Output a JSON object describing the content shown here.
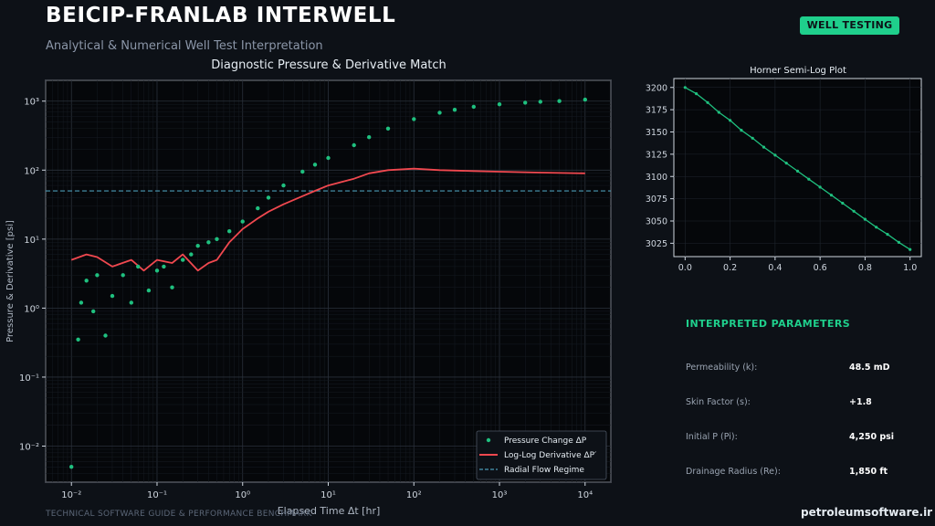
{
  "header": {
    "title": "BEICIP-FRANLAB INTERWELL",
    "subtitle": "Analytical & Numerical Well Test Interpretation",
    "badge": "WELL TESTING"
  },
  "chart_data": [
    {
      "type": "scatter",
      "title": "Diagnostic Pressure & Derivative Match",
      "xlabel": "Elapsed Time Δt [hr]",
      "ylabel": "Pressure & Derivative [psi]",
      "xscale": "log",
      "yscale": "log",
      "xlim": [
        0.005,
        20000
      ],
      "ylim": [
        0.003,
        2000
      ],
      "xticks": [
        "10⁻²",
        "10⁻¹",
        "10⁰",
        "10¹",
        "10²",
        "10³",
        "10⁴"
      ],
      "yticks": [
        "10⁻²",
        "10⁻¹",
        "10⁰",
        "10¹",
        "10²",
        "10³"
      ],
      "grid": true,
      "legend_position": "bottom-right",
      "series": [
        {
          "name": "Pressure Change ΔP",
          "type": "scatter",
          "color": "#1fc07f",
          "x": [
            0.01,
            0.012,
            0.013,
            0.015,
            0.018,
            0.02,
            0.025,
            0.03,
            0.04,
            0.05,
            0.06,
            0.08,
            0.1,
            0.12,
            0.15,
            0.2,
            0.25,
            0.3,
            0.4,
            0.5,
            0.7,
            1,
            1.5,
            2,
            3,
            5,
            7,
            10,
            20,
            30,
            50,
            100,
            200,
            300,
            500,
            1000,
            2000,
            3000,
            5000,
            10000
          ],
          "y": [
            0.005,
            0.35,
            1.2,
            2.5,
            0.9,
            3,
            0.4,
            1.5,
            3,
            1.2,
            4,
            1.8,
            3.5,
            4,
            2,
            5,
            6,
            8,
            9,
            10,
            13,
            18,
            28,
            40,
            60,
            95,
            120,
            150,
            230,
            300,
            400,
            550,
            680,
            750,
            830,
            900,
            950,
            980,
            1000,
            1050
          ]
        },
        {
          "name": "Log-Log Derivative ΔP′",
          "type": "line",
          "color": "#f0484f",
          "x": [
            0.01,
            0.015,
            0.02,
            0.03,
            0.05,
            0.07,
            0.1,
            0.15,
            0.2,
            0.3,
            0.4,
            0.5,
            0.7,
            1,
            1.5,
            2,
            3,
            5,
            7,
            10,
            20,
            30,
            50,
            100,
            200,
            500,
            1000,
            3000,
            10000
          ],
          "y": [
            5,
            6,
            5.5,
            4,
            5,
            3.5,
            5,
            4.5,
            6,
            3.5,
            4.5,
            5,
            9,
            14,
            20,
            25,
            32,
            42,
            50,
            60,
            75,
            90,
            100,
            105,
            100,
            97,
            95,
            92,
            90
          ]
        },
        {
          "name": "Radial Flow Regime",
          "type": "hline",
          "color": "#4a9ab5",
          "y": 50
        }
      ]
    },
    {
      "type": "line",
      "title": "Horner Semi-Log Plot",
      "xlim": [
        -0.05,
        1.05
      ],
      "ylim": [
        3010,
        3210
      ],
      "xticks": [
        "0.0",
        "0.2",
        "0.4",
        "0.6",
        "0.8",
        "1.0"
      ],
      "yticks": [
        "3200",
        "3175",
        "3150",
        "3125",
        "3100",
        "3075",
        "3050",
        "3025"
      ],
      "color": "#1fc07f",
      "x": [
        0,
        0.05,
        0.1,
        0.15,
        0.2,
        0.25,
        0.3,
        0.35,
        0.4,
        0.45,
        0.5,
        0.55,
        0.6,
        0.65,
        0.7,
        0.75,
        0.8,
        0.85,
        0.9,
        0.95,
        1.0
      ],
      "y": [
        3200,
        3193,
        3183,
        3172,
        3163,
        3152,
        3143,
        3133,
        3124,
        3115,
        3106,
        3097,
        3088,
        3079,
        3070,
        3061,
        3052,
        3043,
        3035,
        3026,
        3018
      ]
    }
  ],
  "params": {
    "heading": "INTERPRETED PARAMETERS",
    "items": [
      {
        "label": "Permeability (k):",
        "value": "48.5 mD"
      },
      {
        "label": "Skin Factor (s):",
        "value": "+1.8"
      },
      {
        "label": "Initial P (Pi):",
        "value": "4,250 psi"
      },
      {
        "label": "Drainage Radius (Re):",
        "value": "1,850 ft"
      }
    ]
  },
  "footer": {
    "note": "TECHNICAL SOFTWARE GUIDE & PERFORMANCE BENCHMARK",
    "watermark": "petroleumsoftware.ir"
  }
}
